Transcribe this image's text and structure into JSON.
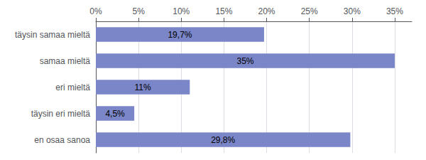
{
  "chart_data": {
    "type": "bar",
    "orientation": "horizontal",
    "categories": [
      "täysin samaa mieltä",
      "samaa mieltä",
      "eri mieltä",
      "täysin eri mieltä",
      "en osaa sanoa"
    ],
    "values": [
      19.7,
      35.0,
      11.0,
      4.5,
      29.8
    ],
    "value_labels": [
      "19,7%",
      "35%",
      "11%",
      "4,5%",
      "29,8%"
    ],
    "data_labels": true,
    "color": "#7b86c8",
    "xlim": [
      0,
      37
    ],
    "xticks": [
      {
        "value": 0,
        "label": "0%"
      },
      {
        "value": 5,
        "label": "5%"
      },
      {
        "value": 10,
        "label": "10%"
      },
      {
        "value": 15,
        "label": "15%"
      },
      {
        "value": 20,
        "label": "20%"
      },
      {
        "value": 25,
        "label": "25%"
      },
      {
        "value": 30,
        "label": "30%"
      },
      {
        "value": 35,
        "label": "35%"
      }
    ],
    "grid": true
  }
}
